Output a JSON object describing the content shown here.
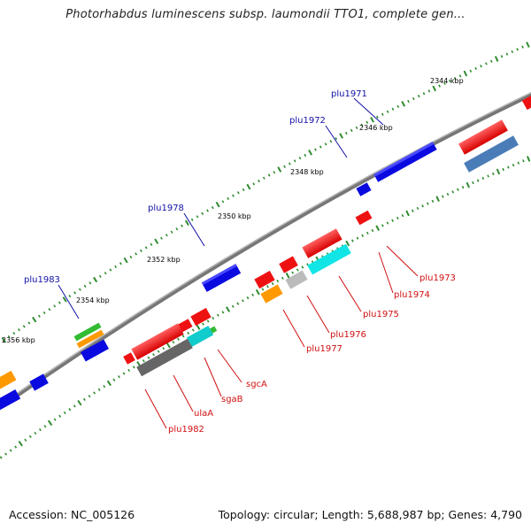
{
  "title": "Photorhabdus luminescens subsp. laumondii TTO1, complete gen...",
  "footer": {
    "accession": "Accession: NC_005126",
    "summary": "Topology: circular; Length: 5,688,987 bp; Genes: 4,790"
  },
  "colors": {
    "backbone": "#808080",
    "tick": "#2e8b2e",
    "label_forward": "#1010a8",
    "label_reverse": "#d01010"
  },
  "scale_labels": [
    "2344 kbp",
    "2346 kbp",
    "2348 kbp",
    "2350 kbp",
    "2352 kbp",
    "2354 kbp",
    "2356 kbp"
  ],
  "gene_labels": {
    "forward": [
      "plu1971",
      "plu1972",
      "plu1978",
      "plu1983"
    ],
    "reverse": [
      "plu1973",
      "plu1974",
      "plu1975",
      "plu1976",
      "plu1977",
      "sgcA",
      "sgaB",
      "ulaA",
      "plu1982"
    ]
  }
}
